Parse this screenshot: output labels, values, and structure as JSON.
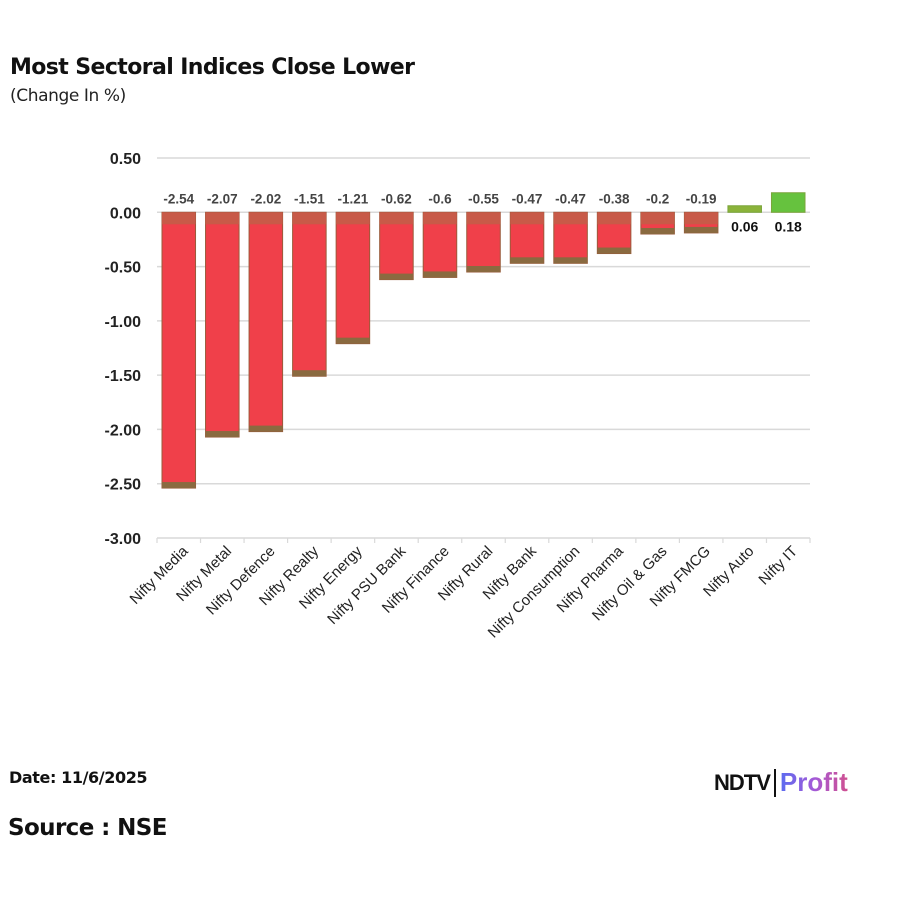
{
  "header": {
    "title": "Most Sectoral Indices Close Lower",
    "subtitle": "(Change In %)"
  },
  "footer": {
    "date": "Date: 11/6/2025",
    "source": "Source : NSE",
    "logo_ndtv": "NDTV",
    "logo_profit": "Profit"
  },
  "colors": {
    "negative": "#f0404a",
    "negative_top": "#c85a48",
    "positive": "#66c23e",
    "positive_dark": "#8bb33a",
    "grid": "#d9d9d9",
    "label": "#444444",
    "axis_text": "#222222"
  },
  "chart_data": {
    "type": "bar",
    "title": "Most Sectoral Indices Close Lower",
    "subtitle": "(Change In %)",
    "xlabel": "",
    "ylabel": "Change In %",
    "categories": [
      "Nifty Media",
      "Nifty Metal",
      "Nifty Defence",
      "Nifty Realty",
      "Nifty Energy",
      "Nifty PSU Bank",
      "Nifty Finance",
      "Nifty Rural",
      "Nifty Bank",
      "Nifty Consumption",
      "Nifty Pharma",
      "Nifty Oil & Gas",
      "Nifty FMCG",
      "Nifty Auto",
      "Nifty IT"
    ],
    "values": [
      -2.54,
      -2.07,
      -2.02,
      -1.51,
      -1.21,
      -0.62,
      -0.6,
      -0.55,
      -0.47,
      -0.47,
      -0.38,
      -0.2,
      -0.19,
      0.06,
      0.18
    ],
    "data_labels": [
      "-2.54",
      "-2.07",
      "-2.02",
      "-1.51",
      "-1.21",
      "-0.62",
      "-0.6",
      "-0.55",
      "-0.47",
      "-0.47",
      "-0.38",
      "-0.2",
      "-0.19",
      "0.06",
      "0.18"
    ],
    "yticks": [
      "0.50",
      "0.00",
      "-0.50",
      "-1.00",
      "-1.50",
      "-2.00",
      "-2.50",
      "-3.00"
    ],
    "ylim": [
      -3.0,
      0.5
    ],
    "grid": true,
    "legend": "none"
  }
}
